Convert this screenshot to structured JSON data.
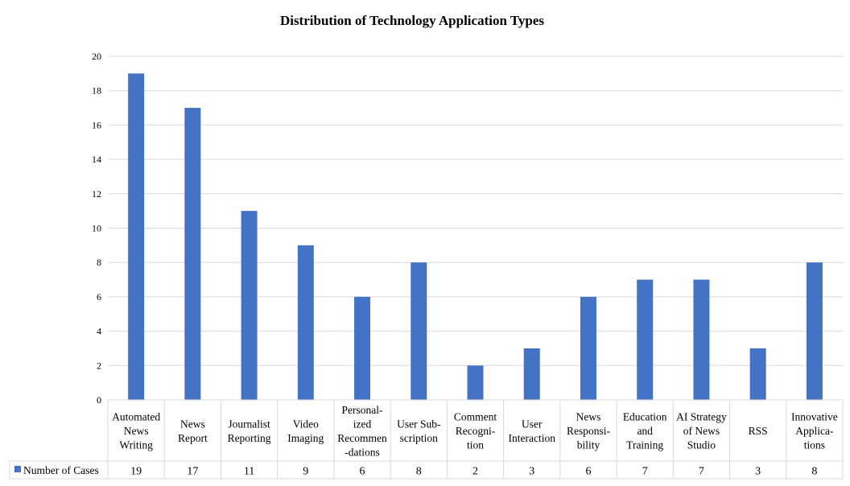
{
  "chart_data": {
    "type": "bar",
    "title": "Distribution of Technology Application Types",
    "categories": [
      "Automated News Writing",
      "News Report",
      "Journalist Reporting",
      "Video Imaging",
      "Personal-ized Recommen-dations",
      "User Sub-scription",
      "Comment Recogni-tion",
      "User Interaction",
      "News Responsi-bility",
      "Education and Training",
      "AI Strategy of News Studio",
      "RSS",
      "Innovative Applica-tions"
    ],
    "category_lines": [
      [
        "Automated",
        "News",
        "Writing"
      ],
      [
        "News",
        "Report"
      ],
      [
        "Journalist",
        "Reporting"
      ],
      [
        "Video",
        "Imaging"
      ],
      [
        "Personal-",
        "ized",
        "Recommen",
        "-dations"
      ],
      [
        "User Sub-",
        "scription"
      ],
      [
        "Comment",
        "Recogni-",
        "tion"
      ],
      [
        "User",
        "Interaction"
      ],
      [
        "News",
        "Responsi-",
        "bility"
      ],
      [
        "Education",
        "and",
        "Training"
      ],
      [
        "AI Strategy",
        "of News",
        "Studio"
      ],
      [
        "RSS"
      ],
      [
        "Innovative",
        "Applica-",
        "tions"
      ]
    ],
    "series": [
      {
        "name": "Number of Cases",
        "values": [
          19,
          17,
          11,
          9,
          6,
          8,
          2,
          3,
          6,
          7,
          7,
          3,
          8
        ],
        "color": "#4472C4"
      }
    ],
    "ylim": [
      0,
      20
    ],
    "yticks": [
      0,
      2,
      4,
      6,
      8,
      10,
      12,
      14,
      16,
      18,
      20
    ],
    "xlabel": "",
    "ylabel": "",
    "grid": true,
    "legend": "data-table-left",
    "data_table": true
  }
}
